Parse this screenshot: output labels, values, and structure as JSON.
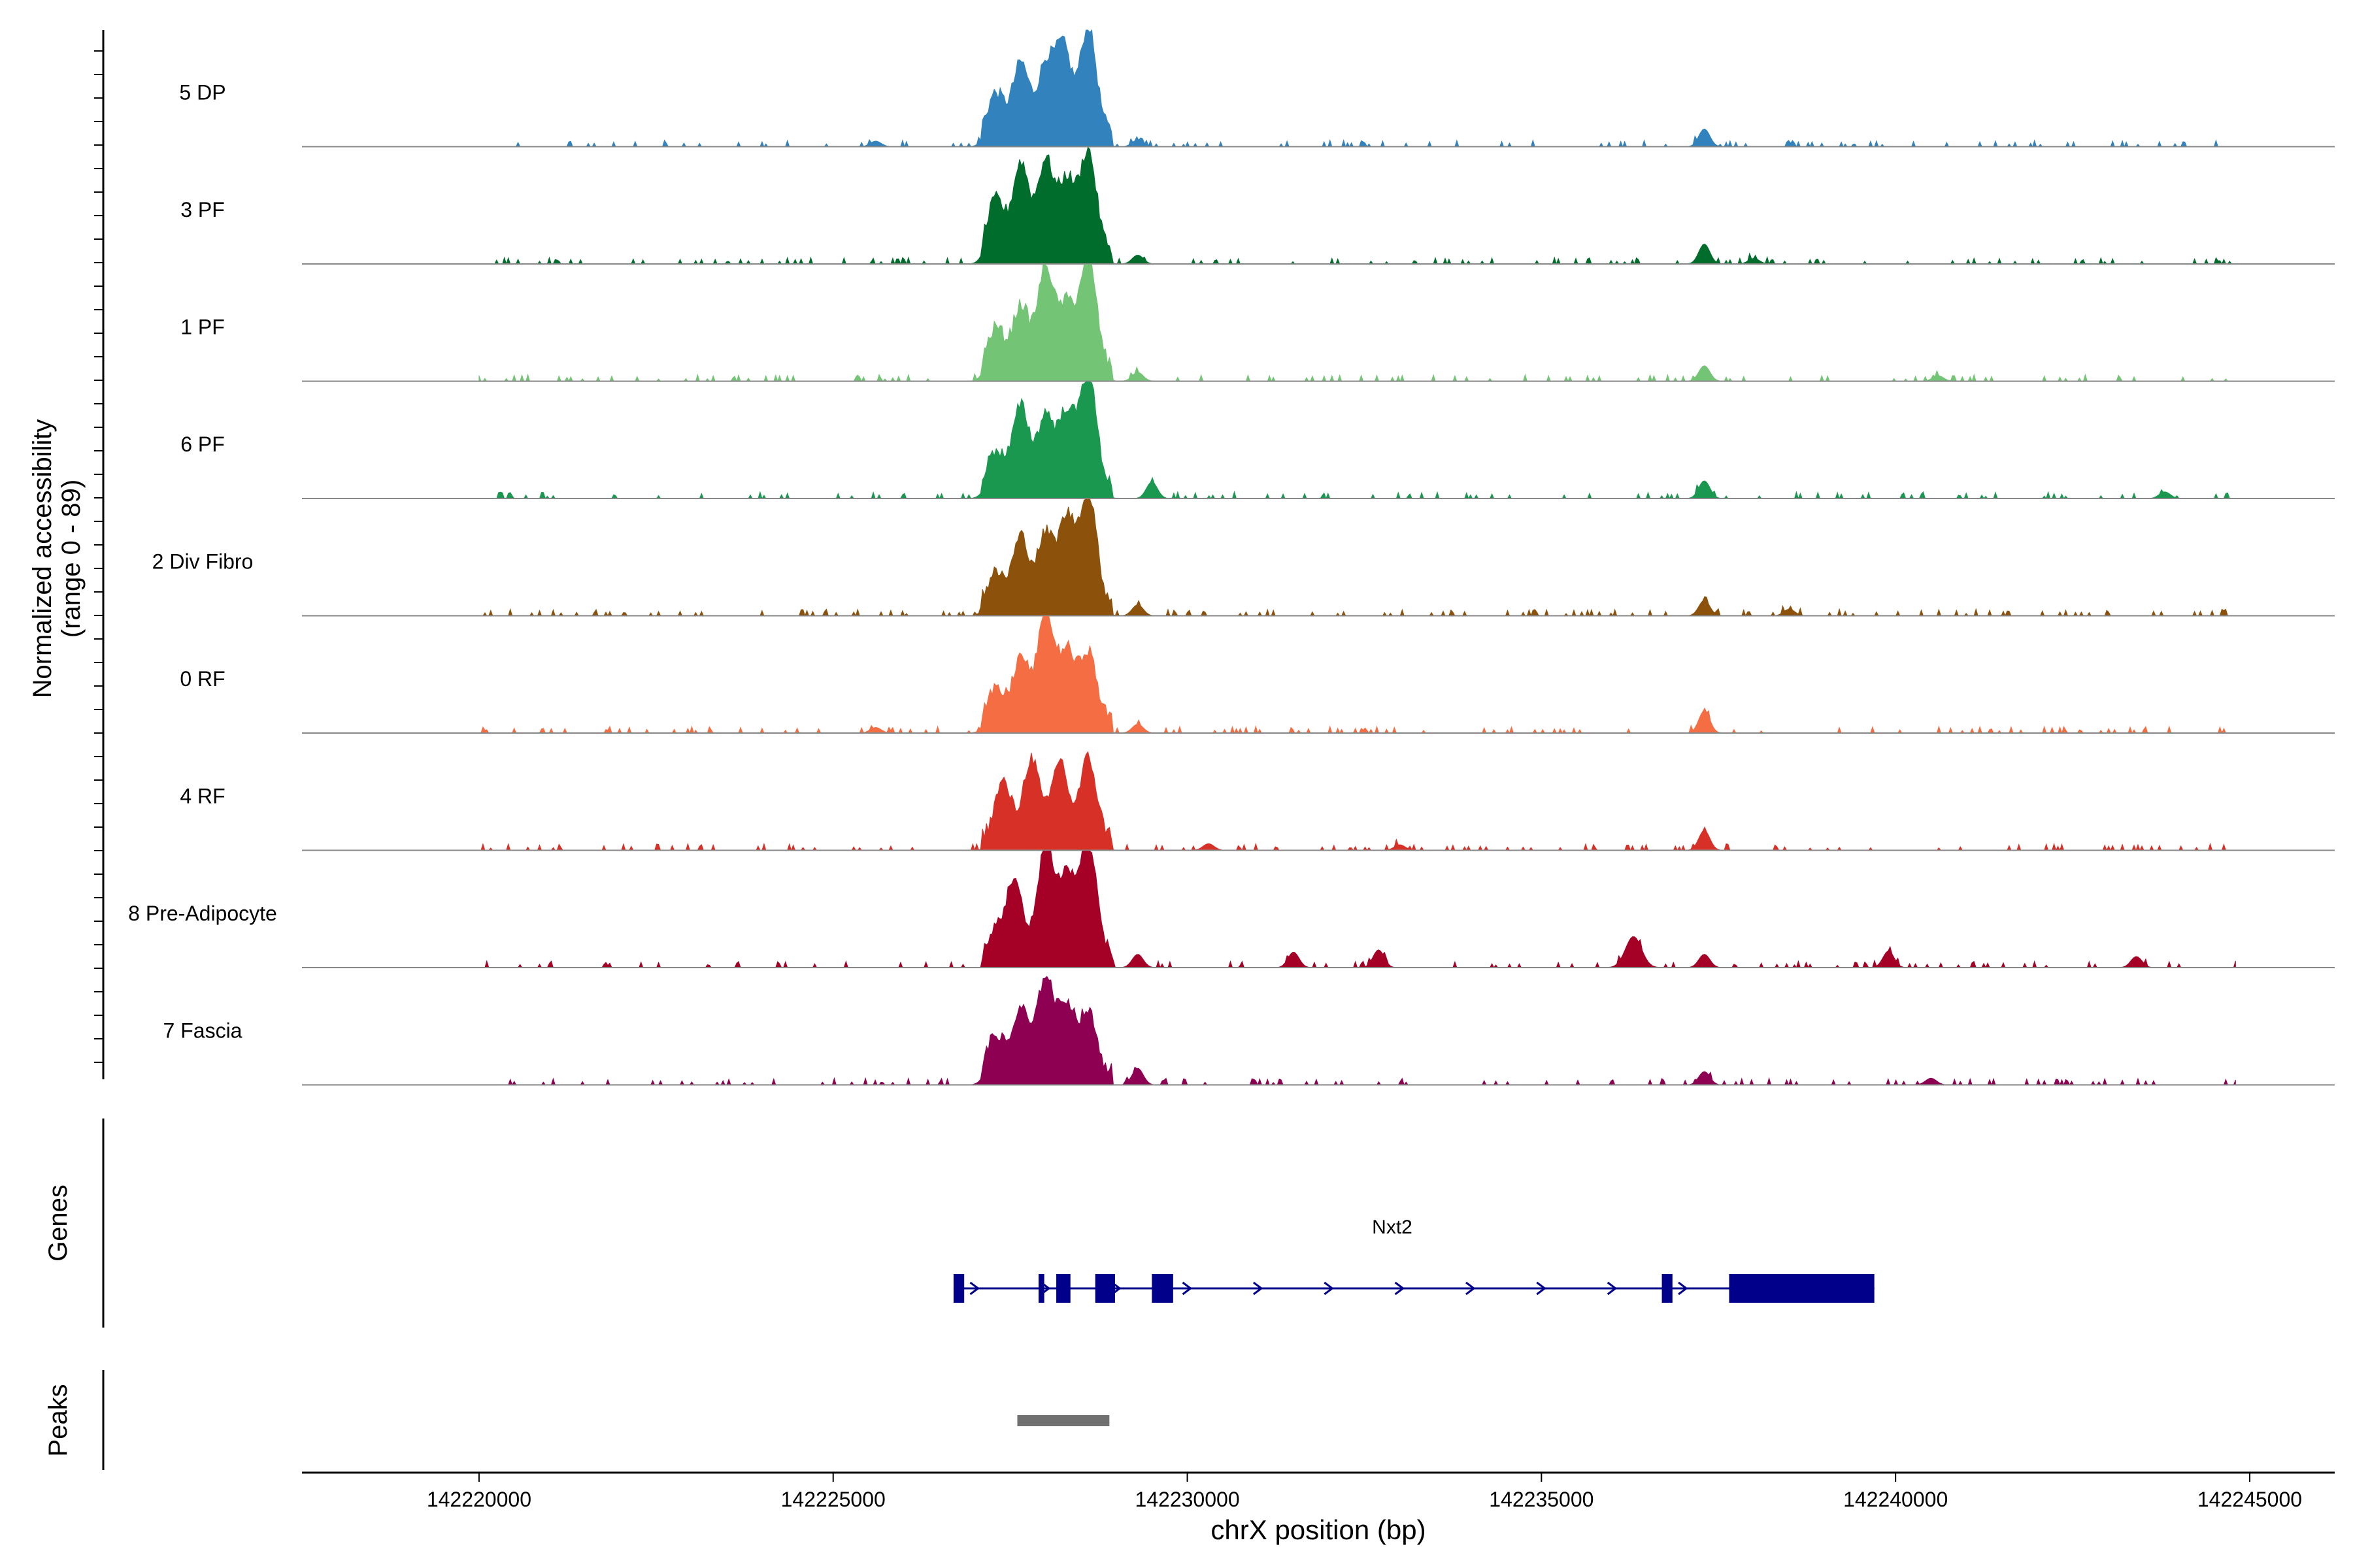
{
  "chart_data": {
    "type": "area",
    "subtype": "coverage-track",
    "y_axis_title_line1": "Normalized accessibility",
    "y_axis_title_line2": "(range 0 - 89)",
    "y_range": [
      0,
      89
    ],
    "xlabel": "chrX position (bp)",
    "xlim": [
      142217500,
      142246200
    ],
    "x_ticks": [
      142220000,
      142225000,
      142230000,
      142235000,
      142240000,
      142245000
    ],
    "x_tick_labels": [
      "142220000",
      "142225000",
      "142230000",
      "142235000",
      "142240000",
      "142245000"
    ],
    "tracks": [
      {
        "name": "5 DP",
        "color": "#3182bd",
        "peaks": [
          [
            142227300,
            0.35
          ],
          [
            142227650,
            0.62
          ],
          [
            142228000,
            0.6
          ],
          [
            142228250,
            0.75
          ],
          [
            142228600,
            0.95
          ],
          [
            142229300,
            0.06
          ],
          [
            142237300,
            0.16
          ],
          [
            142225600,
            0.05
          ]
        ]
      },
      {
        "name": "3 PF",
        "color": "#006d2c",
        "peaks": [
          [
            142227300,
            0.45
          ],
          [
            142227650,
            0.78
          ],
          [
            142228000,
            0.8
          ],
          [
            142228300,
            0.62
          ],
          [
            142228600,
            0.88
          ],
          [
            142229300,
            0.08
          ],
          [
            142237300,
            0.18
          ],
          [
            142238000,
            0.05
          ]
        ]
      },
      {
        "name": "1 PF",
        "color": "#74c476",
        "peaks": [
          [
            142227300,
            0.35
          ],
          [
            142227650,
            0.55
          ],
          [
            142228000,
            0.9
          ],
          [
            142228300,
            0.55
          ],
          [
            142228600,
            1.0
          ],
          [
            142229300,
            0.08
          ],
          [
            142237300,
            0.14
          ],
          [
            142240600,
            0.05
          ]
        ]
      },
      {
        "name": "6 PF",
        "color": "#1a9850",
        "peaks": [
          [
            142227300,
            0.3
          ],
          [
            142227650,
            0.7
          ],
          [
            142228000,
            0.62
          ],
          [
            142228300,
            0.65
          ],
          [
            142228600,
            1.0
          ],
          [
            142229500,
            0.15
          ],
          [
            142237300,
            0.16
          ],
          [
            142243800,
            0.06
          ]
        ]
      },
      {
        "name": "2 Div Fibro",
        "color": "#8c510a",
        "peaks": [
          [
            142227300,
            0.25
          ],
          [
            142227650,
            0.58
          ],
          [
            142228000,
            0.6
          ],
          [
            142228300,
            0.75
          ],
          [
            142228600,
            1.0
          ],
          [
            142229300,
            0.1
          ],
          [
            142237300,
            0.14
          ],
          [
            142238500,
            0.06
          ]
        ]
      },
      {
        "name": "0 RF",
        "color": "#f46d43",
        "peaks": [
          [
            142227300,
            0.25
          ],
          [
            142227650,
            0.55
          ],
          [
            142228000,
            0.95
          ],
          [
            142228300,
            0.6
          ],
          [
            142228600,
            0.6
          ],
          [
            142229300,
            0.08
          ],
          [
            142237300,
            0.2
          ],
          [
            142225600,
            0.05
          ]
        ]
      },
      {
        "name": "4 RF",
        "color": "#d73027",
        "peaks": [
          [
            142227400,
            0.48
          ],
          [
            142227800,
            0.7
          ],
          [
            142228200,
            0.68
          ],
          [
            142228600,
            0.7
          ],
          [
            142230300,
            0.06
          ],
          [
            142237300,
            0.18
          ],
          [
            142233000,
            0.05
          ]
        ]
      },
      {
        "name": "8 Pre-Adipocyte",
        "color": "#a50026",
        "peaks": [
          [
            142227300,
            0.2
          ],
          [
            142227550,
            0.68
          ],
          [
            142228000,
            1.0
          ],
          [
            142228300,
            0.7
          ],
          [
            142228600,
            1.05
          ],
          [
            142229300,
            0.12
          ],
          [
            142231500,
            0.14
          ],
          [
            142232700,
            0.16
          ],
          [
            142236300,
            0.28
          ],
          [
            142237300,
            0.12
          ],
          [
            142239900,
            0.15
          ],
          [
            142243400,
            0.1
          ]
        ]
      },
      {
        "name": "7 Fascia",
        "color": "#8e0152",
        "peaks": [
          [
            142227300,
            0.32
          ],
          [
            142227650,
            0.55
          ],
          [
            142228000,
            0.85
          ],
          [
            142228300,
            0.6
          ],
          [
            142228600,
            0.52
          ],
          [
            142229300,
            0.15
          ],
          [
            142237300,
            0.12
          ],
          [
            142240500,
            0.06
          ]
        ]
      }
    ],
    "genes_label": "Genes",
    "gene": {
      "name": "Nxt2",
      "start": 142226700,
      "end": 142239700,
      "strand": "+",
      "exons": [
        [
          142226700,
          142226850
        ],
        [
          142227900,
          142227980
        ],
        [
          142228150,
          142228350
        ],
        [
          142228700,
          142228980
        ],
        [
          142229500,
          142229800
        ],
        [
          142236700,
          142236850
        ],
        [
          142237650,
          142239700
        ]
      ],
      "color": "#00008b"
    },
    "peaks_label": "Peaks",
    "peak_regions": [
      [
        142227600,
        142228900
      ]
    ],
    "peak_color": "#707070"
  }
}
